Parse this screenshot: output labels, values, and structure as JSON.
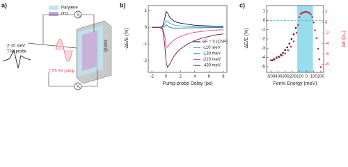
{
  "panel_a": {
    "label": "a)",
    "legend": [
      "Parylene",
      "ITO"
    ],
    "probe_energy": "2-10 meV",
    "probe_name": "THz probe",
    "pump": "1.55 eV pump",
    "substrate": "Quartz",
    "gate_voltage": "V",
    "gate_sub": "g",
    "source_voltage": "V",
    "source_sub": "s"
  },
  "chart_data": [
    {
      "type": "line",
      "label": "b)",
      "xlabel": "Pump-probe Delay (ps)",
      "ylabel": "-ΔE/E (%)",
      "x": [
        -2,
        -1,
        -0.5,
        -0.2,
        0,
        0.2,
        0.5,
        1,
        1.5,
        2,
        3,
        4,
        5,
        6,
        7,
        8
      ],
      "series": [
        {
          "name": "EF = 0 (CNP)",
          "color": "#1f2a5a",
          "values": [
            0,
            0,
            0.05,
            0.5,
            0.95,
            0.85,
            0.6,
            0.4,
            0.3,
            0.25,
            0.18,
            0.12,
            0.1,
            0.08,
            0.06,
            0.05
          ]
        },
        {
          "name": "-110 meV",
          "color": "#5aa7d6",
          "values": [
            0,
            0,
            0.02,
            0.2,
            0.4,
            0.35,
            0.25,
            0.15,
            0.1,
            0.08,
            0.05,
            0.03,
            0.02,
            0.02,
            0.01,
            0.01
          ]
        },
        {
          "name": "-130 meV",
          "color": "#2a8c8c",
          "values": [
            0,
            0,
            0,
            0.05,
            0.15,
            0.1,
            0,
            -0.05,
            -0.05,
            -0.05,
            -0.04,
            -0.03,
            -0.03,
            -0.02,
            -0.02,
            -0.02
          ]
        },
        {
          "name": "-210 meV",
          "color": "#d8559a",
          "values": [
            0,
            0,
            -0.05,
            -0.5,
            -1.1,
            -1.2,
            -1.0,
            -0.8,
            -0.65,
            -0.55,
            -0.4,
            -0.3,
            -0.25,
            -0.2,
            -0.17,
            -0.15
          ]
        },
        {
          "name": "-430 meV",
          "color": "#8a1d5e",
          "values": [
            0,
            0,
            -0.1,
            -1.0,
            -2.1,
            -2.4,
            -2.2,
            -1.8,
            -1.5,
            -1.3,
            -1.0,
            -0.8,
            -0.65,
            -0.55,
            -0.45,
            -0.4
          ]
        }
      ],
      "xlim": [
        -2.5,
        8.5
      ],
      "xticks": [
        -2,
        0,
        2,
        4,
        6,
        8
      ],
      "ylim": [
        -2.7,
        1.3
      ],
      "yticks": [
        -2,
        -1,
        0,
        1
      ]
    },
    {
      "type": "scatter",
      "label": "c)",
      "xlabel": "Fermi Energy (meV)",
      "ylabel": "-ΔE/E (%)",
      "y2label": "Δσ (G₀)",
      "shaded_region": [
        -130,
        90
      ],
      "shade_color": "#7fd3ea",
      "hline": 0,
      "hline_color": "#2bb5d6",
      "series": [
        {
          "name": "-ΔE/E",
          "color": "#222222",
          "x": [
            -480,
            -450,
            -420,
            -390,
            -360,
            -330,
            -300,
            -270,
            -240,
            -210,
            -180,
            -150
          ],
          "values": [
            -4.3,
            -4.2,
            -4.0,
            -3.9,
            -3.7,
            -3.5,
            -3.2,
            -2.9,
            -2.5,
            -2.0,
            -1.5,
            -0.8
          ]
        },
        {
          "name": "Δσ",
          "color": "#d62a3a",
          "axis": "y2",
          "x": [
            -500,
            -460,
            -420,
            -380,
            -340,
            -300,
            -260,
            -220,
            -180,
            -140,
            -120,
            -100,
            -80,
            -60,
            -40,
            -20,
            0,
            20,
            40,
            60,
            80,
            100,
            120,
            140,
            160,
            180,
            200
          ],
          "values": [
            -7.2,
            -7,
            -6.8,
            -6.6,
            -6.3,
            -5.9,
            -5.3,
            -4.6,
            -3.6,
            -2,
            -0.5,
            1,
            1.6,
            1.8,
            1.9,
            2,
            2,
            1.9,
            1.8,
            1.5,
            1.0,
            0,
            -1.5,
            -3,
            -5,
            -7,
            -8.5
          ]
        }
      ],
      "xlim": [
        -560,
        240
      ],
      "xticks": [
        -500,
        -400,
        -300,
        -200,
        -100,
        0,
        100,
        200
      ],
      "ylim": [
        -5.6,
        1.6
      ],
      "yticks": [
        -5,
        -4,
        -3,
        -2,
        -1,
        0,
        1
      ],
      "y2lim": [
        -9.5,
        3.2
      ],
      "y2ticks": [
        -8,
        -6,
        -4,
        -2,
        0,
        2
      ]
    }
  ]
}
